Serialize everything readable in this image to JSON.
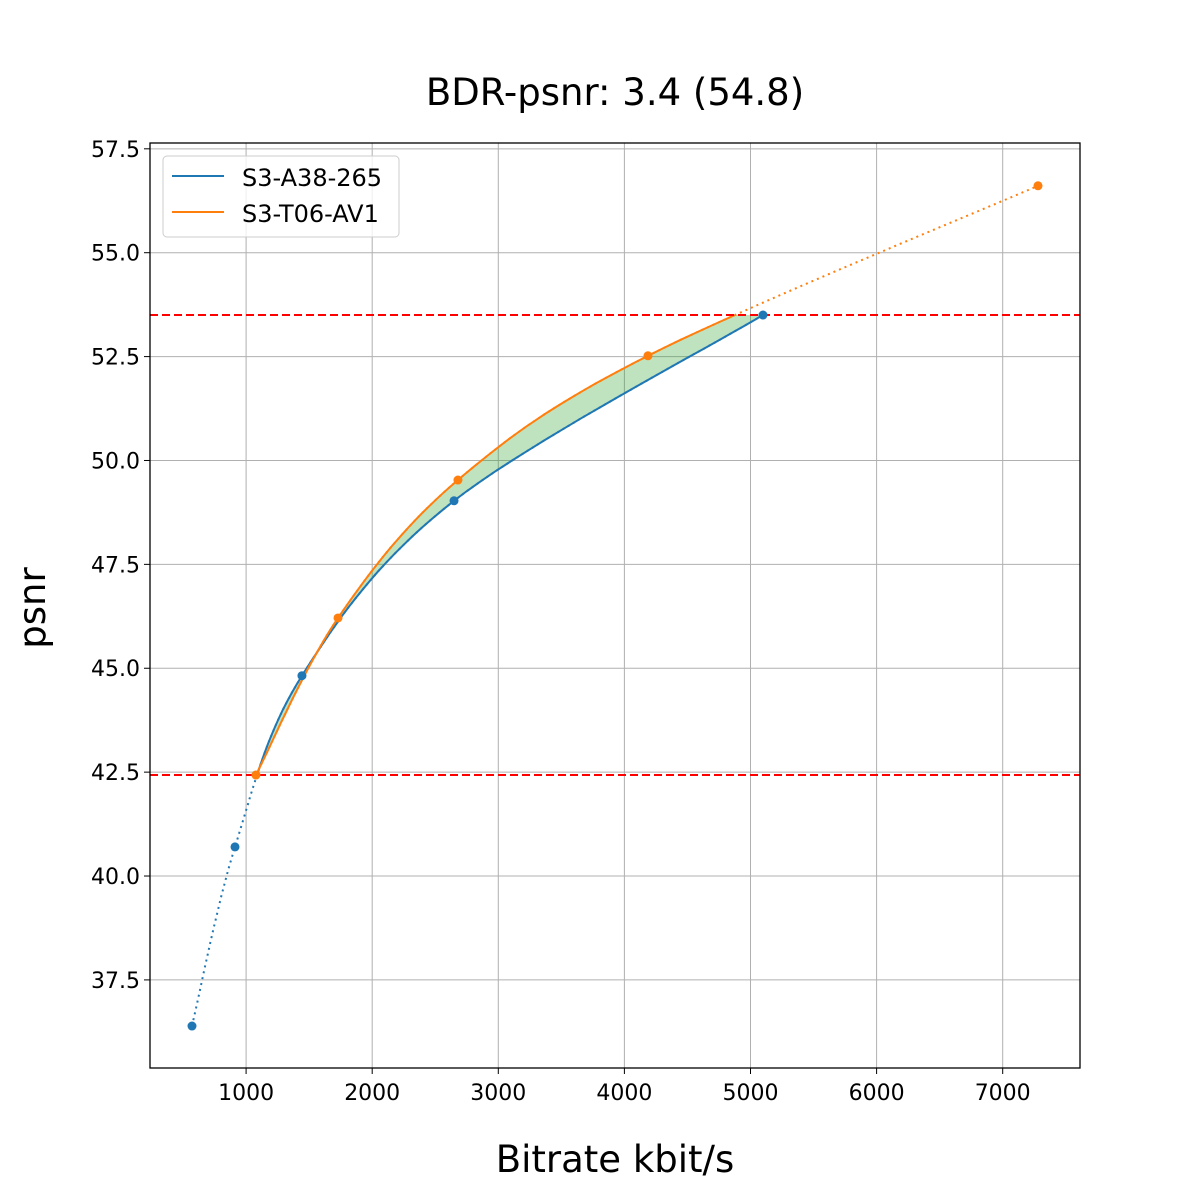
{
  "chart_data": {
    "type": "line",
    "title": "BDR-psnr: 3.4 (54.8)",
    "xlabel": "Bitrate kbit/s",
    "ylabel": "psnr",
    "xlim": [
      238,
      7613
    ],
    "ylim": [
      35.38,
      57.64
    ],
    "xticks": [
      1000,
      2000,
      3000,
      4000,
      5000,
      6000,
      7000
    ],
    "yticks": [
      37.5,
      40.0,
      42.5,
      45.0,
      47.5,
      50.0,
      52.5,
      55.0,
      57.5
    ],
    "grid": true,
    "legend_position": "top-left",
    "hlines": [
      42.43,
      53.5
    ],
    "hline_color": "#ff0000",
    "fill_color": "#2ca02c",
    "series": [
      {
        "name": "S3-A38-265",
        "color": "#1f77b4",
        "x": [
          571,
          912,
          1443,
          2649,
          5099
        ],
        "y": [
          36.39,
          40.7,
          44.82,
          49.03,
          53.5
        ]
      },
      {
        "name": "S3-T06-AV1",
        "color": "#ff7f0e",
        "x": [
          1078,
          1729,
          2680,
          4187,
          7280
        ],
        "y": [
          42.43,
          46.21,
          49.53,
          52.52,
          56.61
        ]
      }
    ]
  }
}
